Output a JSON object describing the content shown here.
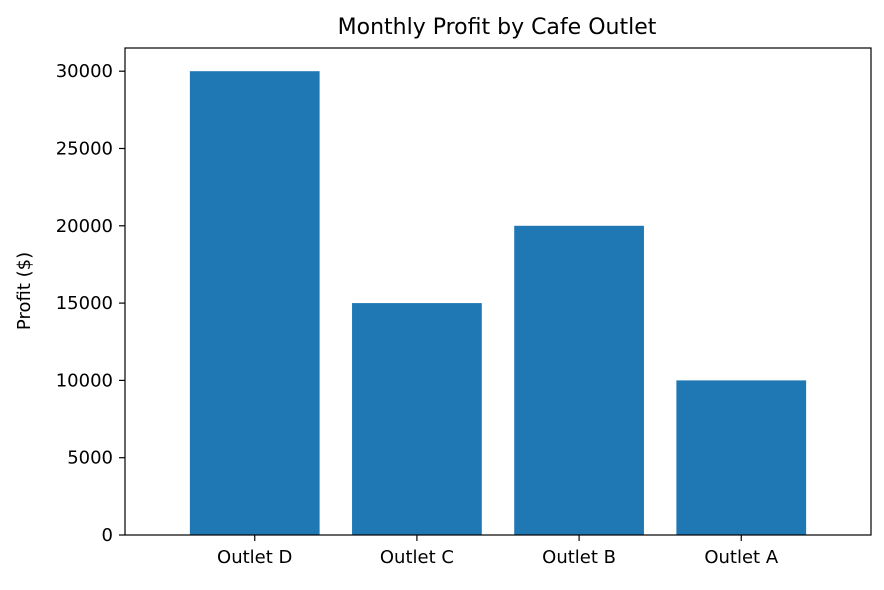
{
  "chart_data": {
    "type": "bar",
    "title": "Monthly Profit by Cafe Outlet",
    "xlabel": "",
    "ylabel": "Profit ($)",
    "categories": [
      "Outlet D",
      "Outlet C",
      "Outlet B",
      "Outlet A"
    ],
    "values": [
      30000,
      15000,
      20000,
      10000
    ],
    "ylim": [
      0,
      31500
    ],
    "yticks": [
      0,
      5000,
      10000,
      15000,
      20000,
      25000,
      30000
    ],
    "ytick_labels": [
      "0",
      "5000",
      "10000",
      "15000",
      "20000",
      "25000",
      "30000"
    ],
    "grid": false,
    "legend": "none",
    "bar_color": "#1f77b4"
  }
}
